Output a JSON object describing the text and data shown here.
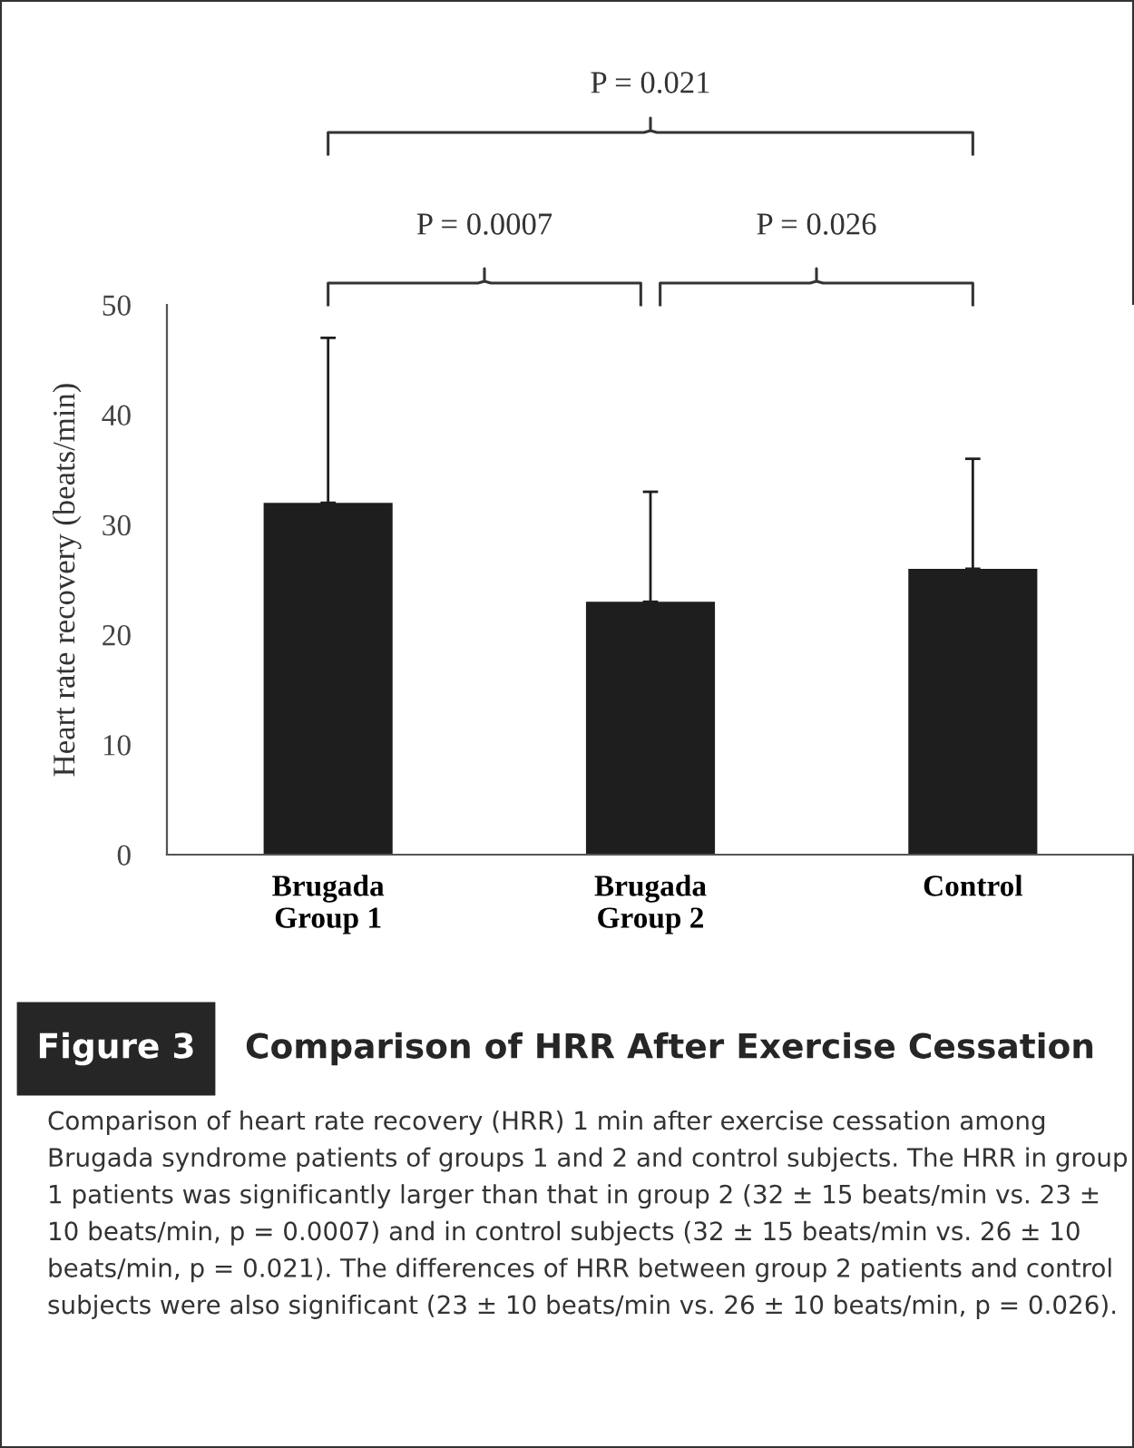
{
  "chart_data": {
    "type": "bar",
    "title": "Comparison of HRR After Exercise Cessation",
    "subtitle": "Figure 3",
    "ylabel": "Heart rate recovery (beats/min)",
    "categories": [
      "Brugada\nGroup 1",
      "Brugada\nGroup 2",
      "Control"
    ],
    "values": [
      32,
      23,
      26
    ],
    "errors": [
      15,
      10,
      10
    ],
    "color": "#1e1e1e",
    "ylim": [
      0,
      50
    ],
    "yticks": [
      0,
      10,
      20,
      30,
      40,
      50
    ],
    "grid": false,
    "annotations": [
      "P = 0.021",
      "P = 0.0007",
      "P = 0.026",
      "Comparison of heart rate recovery (HRR) 1 min after exercise cessation among Brugada syndrome patients of groups 1 and 2 and control subjects. The HRR in group 1 patients was significantly larger than that in group 2 (32 ± 15 beats/min vs. 23 ± 10 beats/min, p = 0.0007) and in control subjects (32 ± 15 beats/min vs. 26 ± 10 beats/min, p = 0.021). The differences of HRR between group 2 patients and control subjects were also significant (23 ± 10 beats/min vs. 26 ± 10 beats/min, p = 0.026)."
    ]
  }
}
